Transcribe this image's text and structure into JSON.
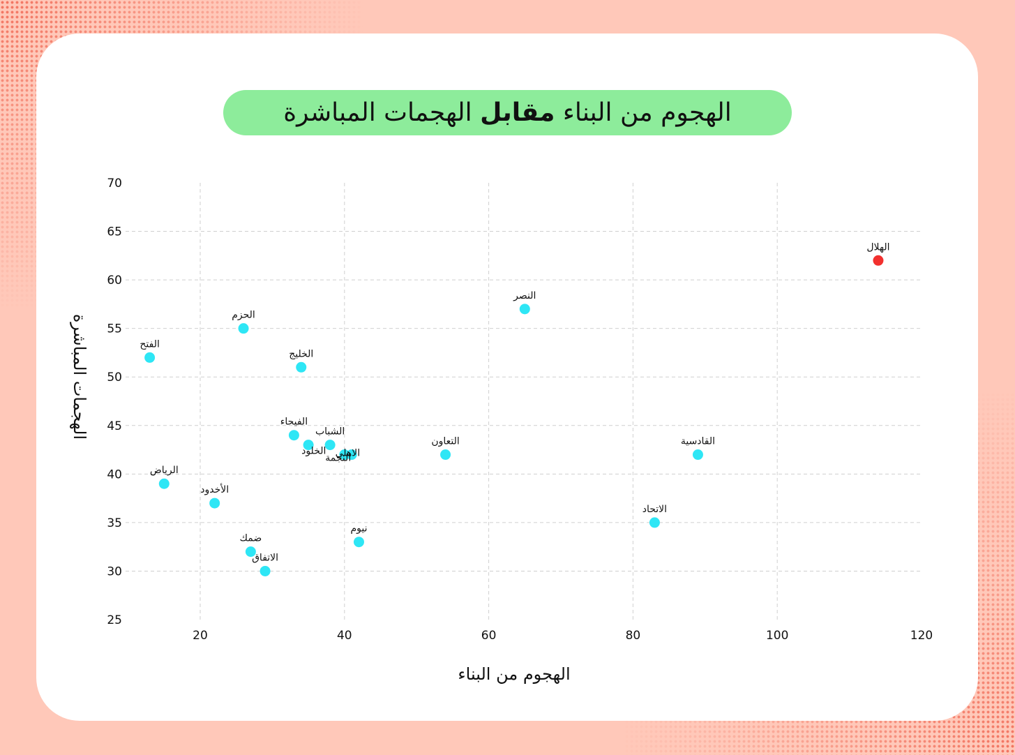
{
  "title": {
    "part1": "الهجوم من البناء",
    "part2": "مقابل",
    "part3": "الهجمات المباشرة"
  },
  "chart_data": {
    "type": "scatter",
    "xlabel": "الهجوم من البناء",
    "ylabel": "الهجمات المباشرة",
    "xlim": [
      10,
      120
    ],
    "ylim": [
      25,
      70
    ],
    "xticks": [
      20,
      40,
      60,
      80,
      100,
      120
    ],
    "yticks": [
      25,
      30,
      35,
      40,
      45,
      50,
      55,
      60,
      65,
      70
    ],
    "grid": true,
    "colors": {
      "default": "#2ee6f5",
      "highlight": "#f2302e"
    },
    "points": [
      {
        "label": "الهلال",
        "x": 114,
        "y": 62,
        "highlight": true
      },
      {
        "label": "النصر",
        "x": 65,
        "y": 57
      },
      {
        "label": "الحزم",
        "x": 26,
        "y": 55
      },
      {
        "label": "الفتح",
        "x": 13,
        "y": 52
      },
      {
        "label": "الخليج",
        "x": 34,
        "y": 51
      },
      {
        "label": "الفيحاء",
        "x": 33,
        "y": 44
      },
      {
        "label": "الشباب",
        "x": 38,
        "y": 43
      },
      {
        "label": "الخلود",
        "x": 35,
        "y": 43
      },
      {
        "label": "النجمة",
        "x": 40,
        "y": 42
      },
      {
        "label": "الاهلي",
        "x": 41,
        "y": 42
      },
      {
        "label": "التعاون",
        "x": 54,
        "y": 42
      },
      {
        "label": "القادسية",
        "x": 89,
        "y": 42
      },
      {
        "label": "الرياض",
        "x": 15,
        "y": 39
      },
      {
        "label": "الأخدود",
        "x": 22,
        "y": 37
      },
      {
        "label": "الاتحاد",
        "x": 83,
        "y": 35
      },
      {
        "label": "نيوم",
        "x": 42,
        "y": 33
      },
      {
        "label": "ضمك",
        "x": 27,
        "y": 32
      },
      {
        "label": "الاتفاق",
        "x": 29,
        "y": 30
      }
    ]
  }
}
